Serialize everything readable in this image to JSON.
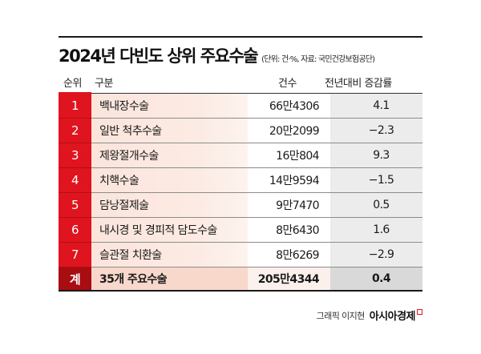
{
  "title": "2024년 다빈도 상위 주요수술",
  "subtitle": "(단위: 건·%, 자료: 국민건강보험공단)",
  "columns": {
    "rank": "순위",
    "name": "구분",
    "count": "건수",
    "rate": "전년대비 증감률"
  },
  "rows": [
    {
      "rank": "1",
      "name": "백내장수술",
      "count": "66만4306",
      "rate": "4.1"
    },
    {
      "rank": "2",
      "name": "일반 척추수술",
      "count": "20만2099",
      "rate": "−2.3"
    },
    {
      "rank": "3",
      "name": "제왕절개수술",
      "count": "16만804",
      "rate": "9.3"
    },
    {
      "rank": "4",
      "name": "치핵수술",
      "count": "14만9594",
      "rate": "−1.5"
    },
    {
      "rank": "5",
      "name": "담낭절제술",
      "count": "9만7470",
      "rate": "0.5"
    },
    {
      "rank": "6",
      "name": "내시경 및 경피적 담도수술",
      "count": "8만6430",
      "rate": "1.6"
    },
    {
      "rank": "7",
      "name": "슬관절 치환술",
      "count": "8만6269",
      "rate": "−2.9"
    }
  ],
  "total": {
    "rank": "계",
    "name": "35개 주요수술",
    "count": "205만4344",
    "rate": "0.4"
  },
  "credit": {
    "text": "그래픽 이지현",
    "brand": "아시아경제"
  },
  "colors": {
    "accent_red": "#e0141e",
    "total_red": "#a80d12",
    "name_bg": "#fbe5dc",
    "rate_bg": "#ececec"
  }
}
